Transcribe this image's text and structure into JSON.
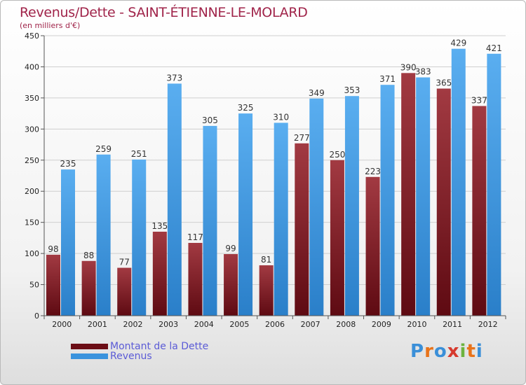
{
  "title": "Revenus/Dette - SAINT-ÉTIENNE-LE-MOLARD",
  "subtitle": "(en milliers d'€)",
  "legend": {
    "debt_label": "Montant de la Dette",
    "revenue_label": "Revenus"
  },
  "logo": {
    "letters": [
      "P",
      "r",
      "o",
      "x",
      "i",
      "t",
      "i"
    ],
    "colors": [
      "#3a8fd8",
      "#e8731a",
      "#3a8fd8",
      "#d63a2e",
      "#6db33f",
      "#e8731a",
      "#3a8fd8"
    ]
  },
  "colors": {
    "debt": "#6b0d15",
    "debt_light": "#a23a42",
    "revenue": "#2a7fc9",
    "revenue_light": "#5aaef0",
    "axis_text": "#222222",
    "title": "#a0244a"
  },
  "chart_data": {
    "type": "bar",
    "categories": [
      "2000",
      "2001",
      "2002",
      "2003",
      "2004",
      "2005",
      "2006",
      "2007",
      "2008",
      "2009",
      "2010",
      "2011",
      "2012"
    ],
    "series": [
      {
        "name": "Montant de la Dette",
        "values": [
          98,
          88,
          77,
          135,
          117,
          99,
          81,
          277,
          250,
          223,
          390,
          365,
          337
        ]
      },
      {
        "name": "Revenus",
        "values": [
          235,
          259,
          251,
          373,
          305,
          325,
          310,
          349,
          353,
          371,
          383,
          429,
          421
        ]
      }
    ],
    "ylim": [
      0,
      450
    ],
    "yticks": [
      0,
      50,
      100,
      150,
      200,
      250,
      300,
      350,
      400,
      450
    ],
    "grid": true,
    "legend_position": "bottom-left"
  }
}
